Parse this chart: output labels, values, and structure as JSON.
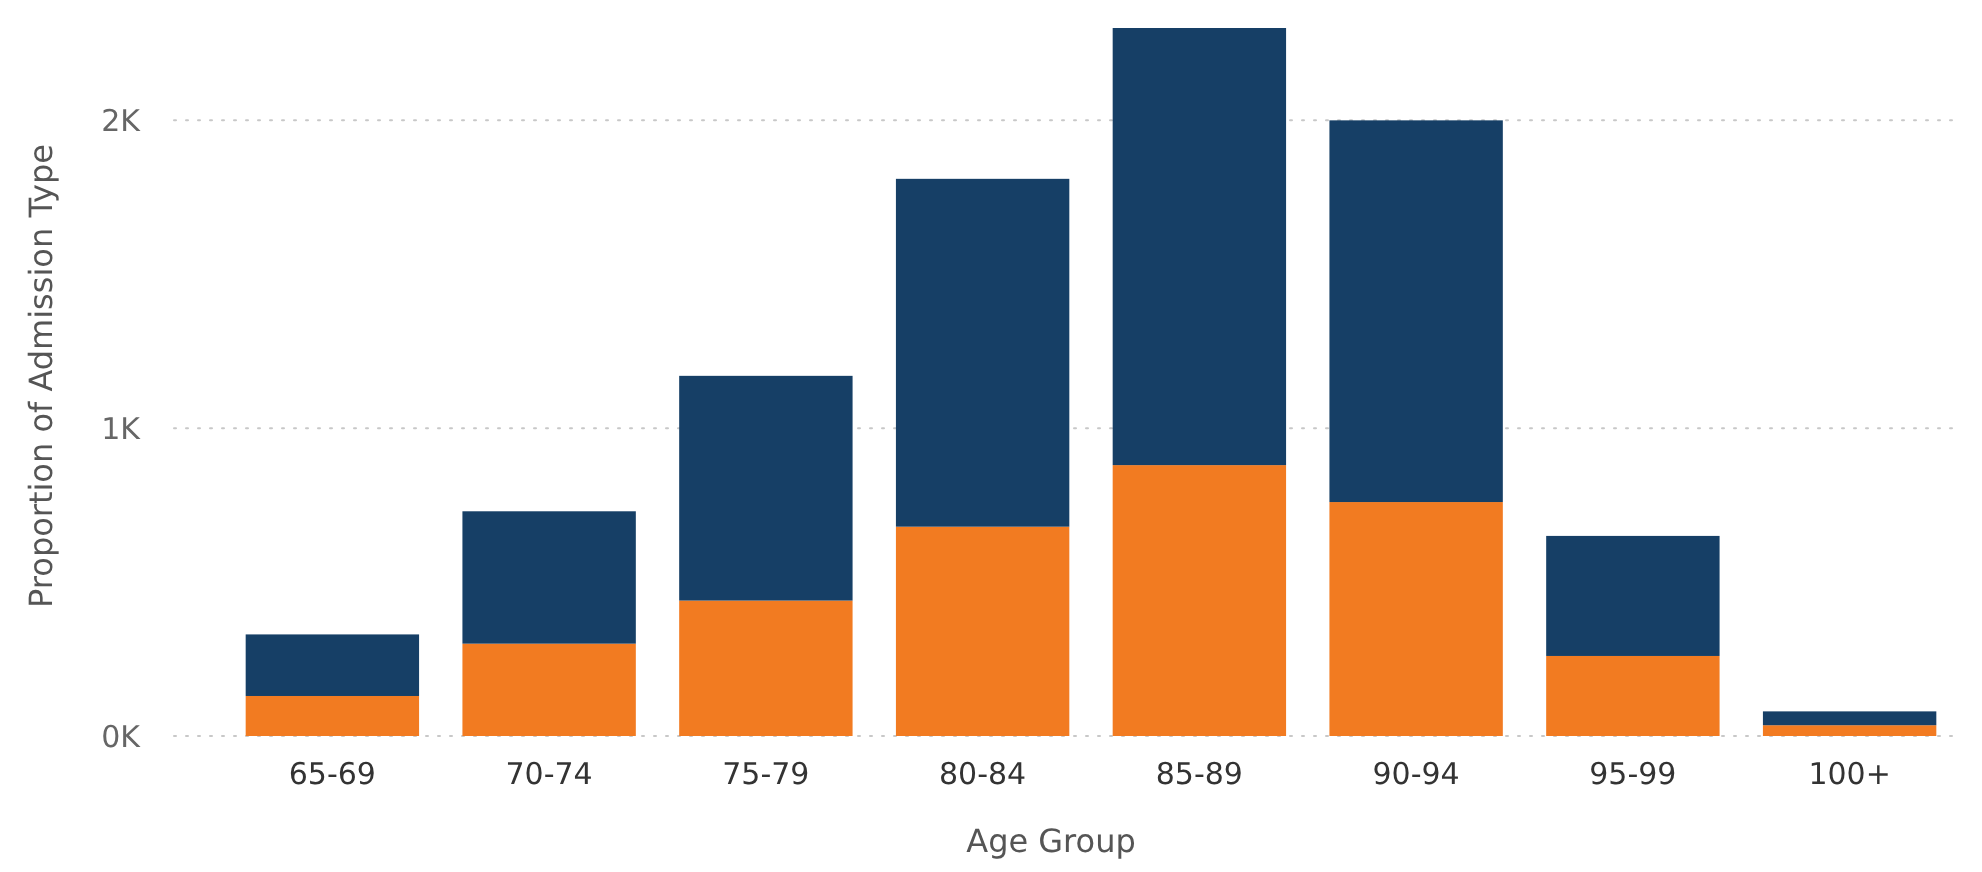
{
  "chart_data": {
    "type": "bar",
    "stacked": true,
    "xlabel": "Age Group",
    "ylabel": "Proportion of Admission Type",
    "categories": [
      "65-69",
      "70-74",
      "75-79",
      "80-84",
      "85-89",
      "90-94",
      "95-99",
      "100+"
    ],
    "series": [
      {
        "color": "#f27b21",
        "values": [
          130,
          300,
          440,
          680,
          880,
          760,
          260,
          35
        ]
      },
      {
        "color": "#163f66",
        "values": [
          200,
          430,
          730,
          1130,
          1420,
          1240,
          390,
          45
        ]
      }
    ],
    "ylim": [
      0,
      2300
    ],
    "yticks": [
      {
        "value": 0,
        "label": "0K"
      },
      {
        "value": 1000,
        "label": "1K"
      },
      {
        "value": 2000,
        "label": "2K"
      }
    ],
    "grid": "y"
  }
}
